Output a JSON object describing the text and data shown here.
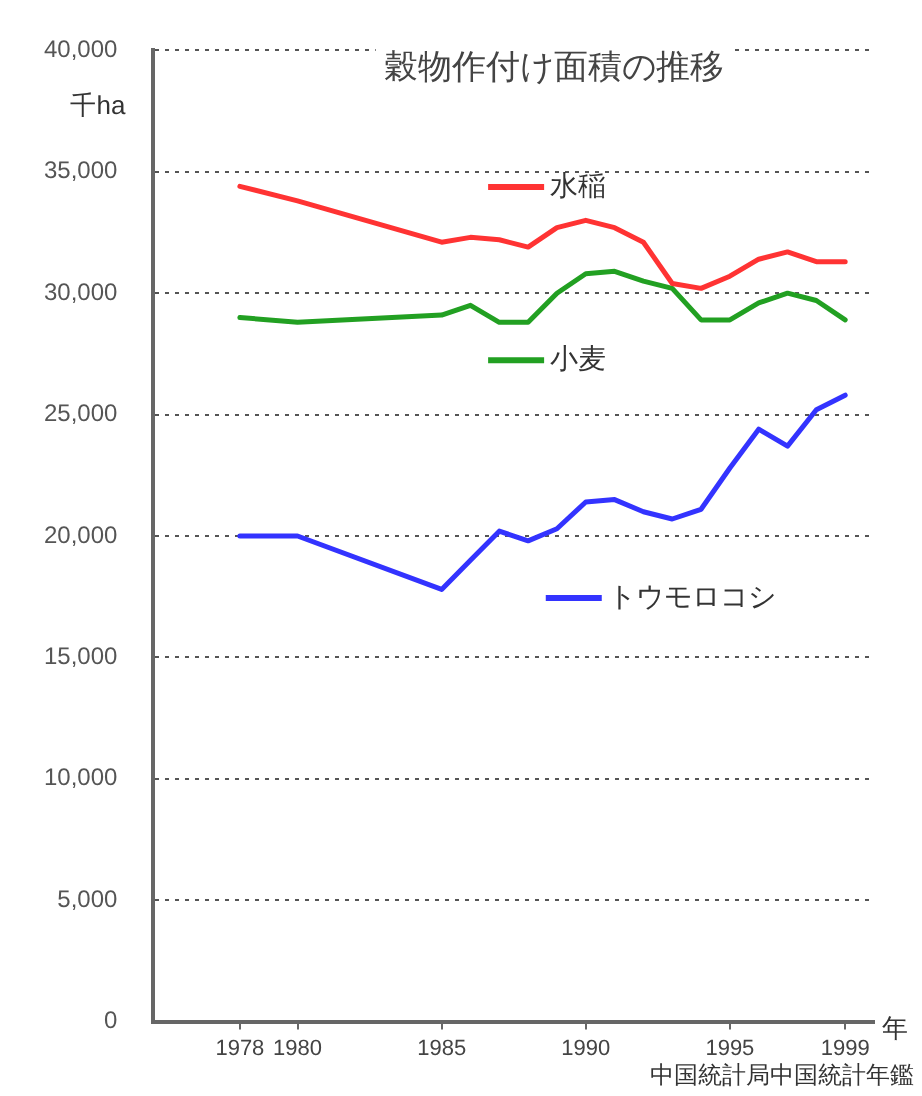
{
  "chart_data": {
    "type": "line",
    "title": "穀物作付け面積の推移",
    "ylabel": "千ha",
    "xlabel": "年",
    "annotations": [
      "中国統計局中国統計年鑑"
    ],
    "x": [
      1978,
      1980,
      1985,
      1986,
      1987,
      1988,
      1989,
      1990,
      1991,
      1992,
      1993,
      1994,
      1995,
      1996,
      1997,
      1998,
      1999
    ],
    "series": [
      {
        "name": "水稲",
        "color": "#ff3333",
        "values": [
          34400,
          33800,
          32100,
          32300,
          32200,
          31900,
          32700,
          33000,
          32700,
          32100,
          30400,
          30200,
          30700,
          31400,
          31700,
          31300,
          31300
        ]
      },
      {
        "name": "小麦",
        "color": "#22a022",
        "values": [
          29000,
          28800,
          29100,
          29500,
          28800,
          28800,
          30000,
          30800,
          30900,
          30500,
          30200,
          28900,
          28900,
          29600,
          30000,
          29700,
          28900
        ]
      },
      {
        "name": "トウモロコシ",
        "color": "#3333ff",
        "values": [
          20000,
          20000,
          17800,
          19000,
          20200,
          19800,
          20300,
          21400,
          21500,
          21000,
          20700,
          21100,
          22800,
          24400,
          23700,
          25200,
          25800
        ]
      }
    ],
    "xlim": [
      1975,
      2000
    ],
    "xticks": [
      1978,
      1980,
      1985,
      1990,
      1995,
      1999
    ],
    "ylim": [
      0,
      40000
    ],
    "yticks": [
      0,
      {
        "value": 5000,
        "label": "5,000"
      },
      {
        "value": 10000,
        "label": "10,000"
      },
      {
        "value": 15000,
        "label": "15,000"
      },
      {
        "value": 20000,
        "label": "20,000"
      },
      {
        "value": 25000,
        "label": "25,000"
      },
      {
        "value": 30000,
        "label": "30,000"
      },
      {
        "value": 35000,
        "label": "35,000"
      },
      {
        "value": 40000,
        "label": "40,000"
      }
    ],
    "grid": "y",
    "legend": "right",
    "marker": "none",
    "line_style": "solid"
  }
}
